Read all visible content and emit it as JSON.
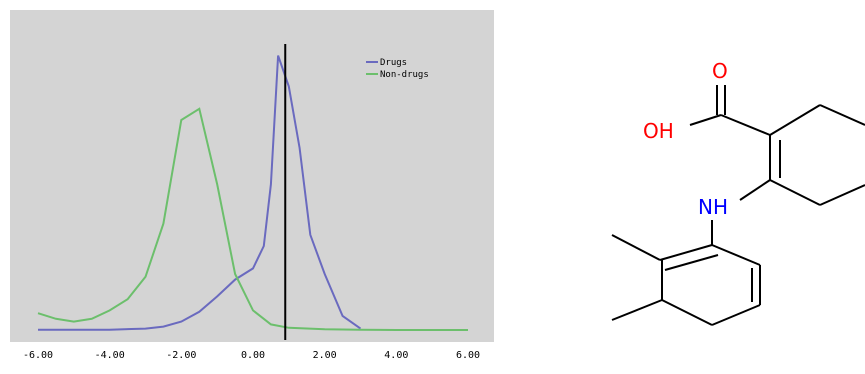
{
  "chart_data": {
    "type": "line",
    "title": "",
    "xlabel": "",
    "ylabel": "",
    "xlim": [
      -6,
      6
    ],
    "x_ticks": [
      "-6.00",
      "-4.00",
      "-2.00",
      "0.00",
      "2.00",
      "4.00",
      "6.00"
    ],
    "grid": false,
    "legend_position": "top-right",
    "background": "#d4d4d4",
    "series": [
      {
        "name": "Drugs",
        "color": "#6a6abf",
        "x": [
          -6.0,
          -4.0,
          -3.0,
          -2.5,
          -2.0,
          -1.5,
          -1.0,
          -0.5,
          0.0,
          0.3,
          0.5,
          0.7,
          1.0,
          1.3,
          1.6,
          2.0,
          2.5,
          3.0
        ],
        "y": [
          0.1,
          0.1,
          0.5,
          1.2,
          3.0,
          6.5,
          12.0,
          18.0,
          22.0,
          30.0,
          52.0,
          98.0,
          87.0,
          65.0,
          34.0,
          20.0,
          5.0,
          0.5
        ]
      },
      {
        "name": "Non-drugs",
        "color": "#6cbf6c",
        "x": [
          -6.0,
          -5.5,
          -5.0,
          -4.5,
          -4.0,
          -3.5,
          -3.0,
          -2.5,
          -2.0,
          -1.5,
          -1.0,
          -0.5,
          0.0,
          0.5,
          1.0,
          2.0,
          3.0,
          4.0,
          6.0
        ],
        "y": [
          6.0,
          4.0,
          3.0,
          4.0,
          7.0,
          11.0,
          19.0,
          38.0,
          75.0,
          79.0,
          52.0,
          20.0,
          7.0,
          2.0,
          0.8,
          0.3,
          0.1,
          0.0,
          0.0
        ]
      }
    ],
    "threshold_x": 0.9,
    "threshold_color": "#000000"
  },
  "molecule": {
    "atoms": [
      "O",
      "OH",
      "NH"
    ],
    "colors": {
      "oxygen": "#ff0000",
      "nitrogen": "#0000ff",
      "bond": "#000000"
    }
  }
}
